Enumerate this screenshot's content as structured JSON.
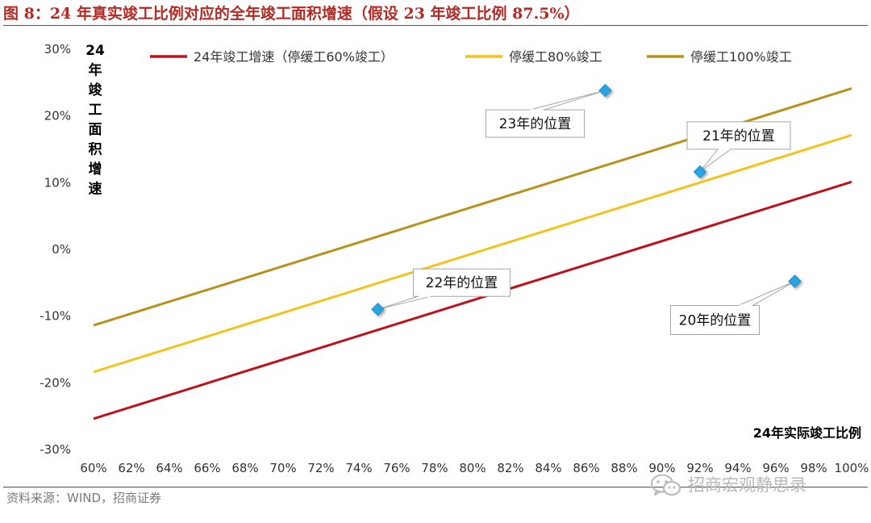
{
  "header": {
    "title": "图 8：24 年真实竣工比例对应的全年竣工面积增速（假设 23 年竣工比例 87.5%）"
  },
  "footer": {
    "source": "资料来源：WIND，招商证券"
  },
  "watermark": {
    "text": "招商宏观静思录",
    "icon": "wechat-icon"
  },
  "chart_data": {
    "type": "line",
    "title": "24 年真实竣工比例对应的全年竣工面积增速（假设 23 年竣工比例 87.5%）",
    "xlabel": "24年实际竣工比例",
    "ylabel": "24年竣工面积增速",
    "ylabel_chars": [
      "24",
      "年",
      "竣",
      "工",
      "面",
      "积",
      "增",
      "速"
    ],
    "x_ticks": [
      "60%",
      "62%",
      "64%",
      "66%",
      "68%",
      "70%",
      "72%",
      "74%",
      "76%",
      "78%",
      "80%",
      "82%",
      "84%",
      "86%",
      "88%",
      "90%",
      "92%",
      "94%",
      "96%",
      "98%",
      "100%"
    ],
    "y_ticks": [
      "30%",
      "20%",
      "10%",
      "0%",
      "-10%",
      "-20%",
      "-30%"
    ],
    "xlim": [
      0.6,
      1.0
    ],
    "ylim": [
      -0.3,
      0.3
    ],
    "grid": false,
    "legend_position": "top",
    "series": [
      {
        "name": "24年竣工增速（停缓工60%竣工）",
        "color": "#c0101a",
        "x": [
          0.6,
          1.0
        ],
        "y": [
          -0.255,
          0.1
        ]
      },
      {
        "name": "停缓工80%竣工",
        "color": "#f5c21b",
        "x": [
          0.6,
          1.0
        ],
        "y": [
          -0.185,
          0.17
        ]
      },
      {
        "name": "停缓工100%竣工",
        "color": "#b8901a",
        "x": [
          0.6,
          1.0
        ],
        "y": [
          -0.115,
          0.24
        ]
      }
    ],
    "points": [
      {
        "label": "23年的位置",
        "x": 0.87,
        "y": 0.237,
        "color": "#29a3e1"
      },
      {
        "label": "21年的位置",
        "x": 0.92,
        "y": 0.115,
        "color": "#29a3e1"
      },
      {
        "label": "22年的位置",
        "x": 0.75,
        "y": -0.091,
        "color": "#29a3e1"
      },
      {
        "label": "20年的位置",
        "x": 0.97,
        "y": -0.049,
        "color": "#29a3e1"
      }
    ]
  }
}
